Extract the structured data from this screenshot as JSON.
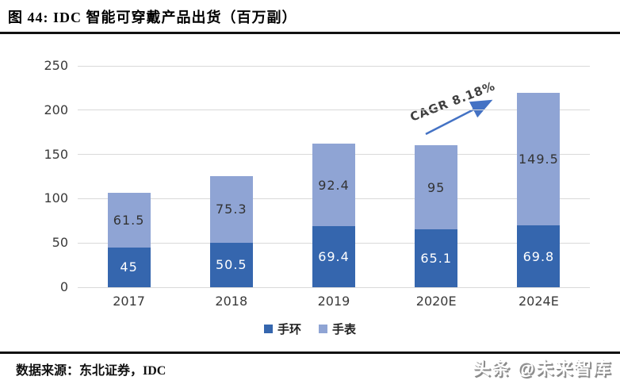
{
  "header": {
    "title": "图  44:  IDC 智能可穿戴产品出货（百万副）"
  },
  "chart_data": {
    "type": "bar",
    "stacked": true,
    "title": "IDC 智能可穿戴产品出货（百万副）",
    "unit": "百万副",
    "categories": [
      "2017",
      "2018",
      "2019",
      "2020E",
      "2024E"
    ],
    "series": [
      {
        "name": "手环",
        "color": "#3566AE",
        "label_color": "#ffffff",
        "values": [
          45,
          50.5,
          69.4,
          65.1,
          69.8
        ]
      },
      {
        "name": "手表",
        "color": "#8FA4D4",
        "label_color": "#333333",
        "values": [
          61.5,
          75.3,
          92.4,
          95,
          149.5
        ]
      }
    ],
    "ylim": [
      0,
      250
    ],
    "yticks": [
      0,
      50,
      100,
      150,
      200,
      250
    ],
    "grid": "horizontal",
    "gridline_color": "#d9d9d9",
    "legend_position": "bottom",
    "annotation": {
      "text": "CAGR 8.18%",
      "color": "#3f3f3f",
      "arrow_color": "#4472C4"
    }
  },
  "footer": {
    "source": "数据来源：东北证券，IDC",
    "watermark": "头条 @未来智库"
  }
}
